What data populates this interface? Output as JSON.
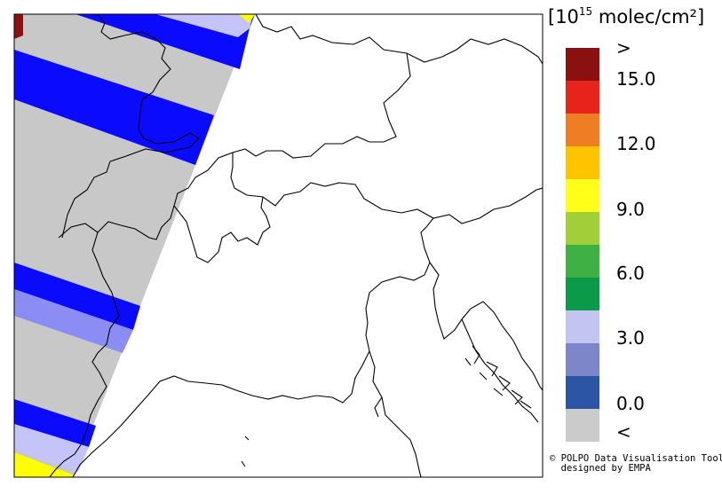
{
  "legend": {
    "unit_exponent": "15",
    "unit_text": " molec/cm²",
    "bins": [
      {
        "color": "#8b1010"
      },
      {
        "color": "#e8231b"
      },
      {
        "color": "#ef7d23"
      },
      {
        "color": "#ffc400"
      },
      {
        "color": "#ffff1a"
      },
      {
        "color": "#a0cf3a"
      },
      {
        "color": "#3fb144"
      },
      {
        "color": "#0a9a4a"
      },
      {
        "color": "#c4c4f2"
      },
      {
        "color": "#7c86c8"
      },
      {
        "color": "#2c55a6"
      },
      {
        "color": "#cbcbcb"
      }
    ],
    "ticks": [
      ">",
      "15.0",
      "12.0",
      "9.0",
      "6.0",
      "3.0",
      "0.0",
      "<"
    ]
  },
  "credit": {
    "line1": "© POLPO Data Visualisation Tool",
    "line2": "  designed by EMPA"
  },
  "map": {
    "region": "Alps / Northern Italy",
    "swath_colors": {
      "fill": "#c8c8c8",
      "blue": "#0a0aff",
      "light_blue": "#8c8cf5",
      "pale": "#c4c4f8",
      "yellow": "#ffff00",
      "darkred": "#8b1010"
    }
  }
}
